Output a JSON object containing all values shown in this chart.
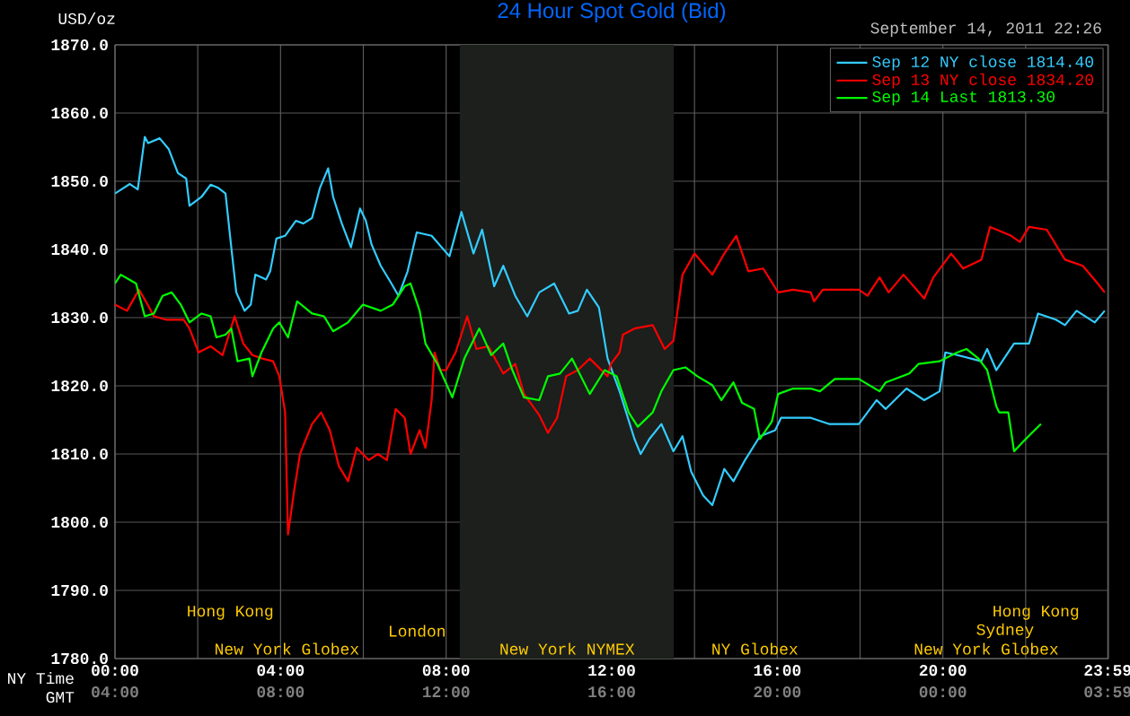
{
  "chart_data": {
    "type": "line",
    "title": "24 Hour Spot Gold (Bid)",
    "ylabel": "USD/oz",
    "xlabel": "NY Time",
    "x2label": "GMT",
    "xlim": [
      0,
      24
    ],
    "xticks": [
      {
        "value": 0,
        "label": "00:00"
      },
      {
        "value": 2,
        "label": null
      },
      {
        "value": 4,
        "label": "04:00"
      },
      {
        "value": 6,
        "label": null
      },
      {
        "value": 8,
        "label": "08:00"
      },
      {
        "value": 10,
        "label": null
      },
      {
        "value": 12,
        "label": "12:00"
      },
      {
        "value": 14,
        "label": null
      },
      {
        "value": 16,
        "label": "16:00"
      },
      {
        "value": 18,
        "label": null
      },
      {
        "value": 20,
        "label": "20:00"
      },
      {
        "value": 22,
        "label": null
      },
      {
        "value": 23.9833,
        "label": "23:59"
      }
    ],
    "x2lim": [
      "2011-09-14T04:00",
      "2011-09-15T04:00"
    ],
    "x2ticks": [
      {
        "value": "2011-09-14T04:00",
        "label": "04:00"
      },
      {
        "value": "2011-09-14T08:00",
        "label": "08:00"
      },
      {
        "value": "2011-09-14T12:00",
        "label": "12:00"
      },
      {
        "value": "2011-09-14T16:00",
        "label": "16:00"
      },
      {
        "value": "2011-09-14T20:00",
        "label": "20:00"
      },
      {
        "value": "2011-09-15T00:00",
        "label": "00:00"
      },
      {
        "value": "2011-09-15T03:59",
        "label": "03:59"
      }
    ],
    "ylim": [
      1780,
      1870
    ],
    "yticks": [
      {
        "value": 1780,
        "label": "1780.0"
      },
      {
        "value": 1790,
        "label": "1790.0"
      },
      {
        "value": 1800,
        "label": "1800.0"
      },
      {
        "value": 1810,
        "label": "1810.0"
      },
      {
        "value": 1820,
        "label": "1820.0"
      },
      {
        "value": 1830,
        "label": "1830.0"
      },
      {
        "value": 1840,
        "label": "1840.0"
      },
      {
        "value": 1850,
        "label": "1850.0"
      },
      {
        "value": 1860,
        "label": "1860.0"
      },
      {
        "value": 1870,
        "label": "1870.0"
      }
    ],
    "grid": true,
    "legend": "top right",
    "bands": [
      {
        "axis": "x",
        "from": 8.33,
        "to": 13.5,
        "color": "#1c1f1c"
      }
    ],
    "annotations": [
      "September 14, 2011 22:26",
      "Hong Kong",
      "Hong Kong",
      "London",
      "Sydney",
      "New York Globex",
      "New York NYMEX",
      "NY Globex",
      "New York Globex"
    ],
    "series": [
      {
        "name": "Sep 12 NY close 1814.40",
        "color": "#33ccff",
        "x": [
          0,
          0.36,
          0.55,
          0.72,
          0.8,
          1.08,
          1.3,
          1.52,
          1.72,
          1.8,
          2.09,
          2.31,
          2.5,
          2.67,
          2.81,
          2.93,
          3.13,
          3.28,
          3.39,
          3.65,
          3.75,
          3.9,
          4.11,
          4.37,
          4.55,
          4.76,
          4.95,
          5.15,
          5.27,
          5.48,
          5.7,
          5.92,
          6.06,
          6.2,
          6.42,
          6.64,
          6.85,
          7.07,
          7.29,
          7.65,
          8.08,
          8.37,
          8.66,
          8.87,
          9.16,
          9.38,
          9.67,
          9.96,
          10.25,
          10.61,
          10.97,
          11.18,
          11.4,
          11.69,
          11.9,
          12.19,
          12.55,
          12.7,
          12.91,
          13.2,
          13.49,
          13.71,
          13.92,
          14.21,
          14.43,
          14.72,
          14.94,
          15.22,
          15.58,
          15.95,
          16.09,
          16.81,
          17.25,
          17.97,
          18.4,
          18.62,
          19.12,
          19.55,
          19.92,
          20.06,
          20.35,
          20.93,
          21.07,
          21.29,
          21.72,
          22.08,
          22.3,
          22.73,
          22.95,
          23.23,
          23.67,
          23.91
        ],
        "values": [
          1848.2,
          1849.6,
          1848.8,
          1856.5,
          1855.6,
          1856.3,
          1854.7,
          1851.2,
          1850.4,
          1846.4,
          1847.7,
          1849.5,
          1849.0,
          1848.2,
          1840.3,
          1833.7,
          1831.0,
          1831.9,
          1836.3,
          1835.6,
          1836.8,
          1841.6,
          1842.0,
          1844.2,
          1843.8,
          1844.6,
          1849.0,
          1851.9,
          1847.7,
          1843.8,
          1840.3,
          1846.0,
          1844.2,
          1840.7,
          1837.6,
          1835.4,
          1833.2,
          1836.8,
          1842.5,
          1842.0,
          1839.0,
          1845.5,
          1839.4,
          1842.9,
          1834.6,
          1837.6,
          1833.2,
          1830.2,
          1833.7,
          1835.0,
          1830.6,
          1831.0,
          1834.1,
          1831.5,
          1824.0,
          1819.2,
          1812.2,
          1810.0,
          1812.2,
          1814.4,
          1810.4,
          1812.6,
          1807.4,
          1803.9,
          1802.5,
          1807.8,
          1806.0,
          1809.1,
          1812.6,
          1813.5,
          1815.3,
          1815.3,
          1814.4,
          1814.4,
          1817.9,
          1816.6,
          1819.6,
          1817.9,
          1819.2,
          1824.9,
          1824.5,
          1823.6,
          1825.4,
          1822.3,
          1826.2,
          1826.2,
          1830.6,
          1829.7,
          1828.9,
          1831.0,
          1829.3,
          1831.0
        ]
      },
      {
        "name": "Sep 13 NY close 1834.20",
        "color": "#ff0000",
        "x": [
          0,
          0.29,
          0.58,
          0.79,
          0.94,
          1.23,
          1.66,
          1.8,
          2.02,
          2.31,
          2.6,
          2.89,
          3.1,
          3.32,
          3.56,
          3.82,
          3.97,
          4.11,
          4.18,
          4.33,
          4.47,
          4.76,
          4.98,
          5.19,
          5.41,
          5.63,
          5.84,
          6.13,
          6.35,
          6.57,
          6.78,
          7.0,
          7.14,
          7.36,
          7.5,
          7.65,
          7.72,
          7.86,
          8.0,
          8.23,
          8.51,
          8.73,
          9.02,
          9.38,
          9.67,
          9.88,
          10.25,
          10.46,
          10.68,
          10.9,
          11.18,
          11.47,
          11.9,
          11.98,
          12.19,
          12.27,
          12.55,
          12.99,
          13.28,
          13.49,
          13.71,
          14.0,
          14.43,
          14.72,
          15.01,
          15.3,
          15.66,
          16.02,
          16.38,
          16.81,
          16.89,
          17.1,
          17.97,
          18.18,
          18.47,
          18.69,
          19.05,
          19.55,
          19.77,
          20.2,
          20.49,
          20.93,
          21.14,
          21.65,
          21.86,
          22.08,
          22.51,
          22.95,
          23.38,
          23.74,
          23.91
        ],
        "values": [
          1831.9,
          1831.0,
          1834.1,
          1831.9,
          1830.2,
          1829.7,
          1829.7,
          1828.4,
          1824.9,
          1825.8,
          1824.5,
          1830.2,
          1826.2,
          1824.5,
          1824.0,
          1823.6,
          1821.4,
          1816.1,
          1798.2,
          1804.7,
          1810.0,
          1814.4,
          1816.1,
          1813.5,
          1808.2,
          1806.0,
          1810.9,
          1809.1,
          1810.0,
          1809.1,
          1816.6,
          1815.3,
          1810.0,
          1813.5,
          1810.9,
          1817.9,
          1824.9,
          1822.3,
          1822.3,
          1824.9,
          1830.2,
          1825.4,
          1825.8,
          1821.8,
          1823.2,
          1818.8,
          1815.7,
          1813.1,
          1815.3,
          1821.4,
          1822.3,
          1824.0,
          1821.4,
          1823.2,
          1824.9,
          1827.5,
          1828.4,
          1828.9,
          1825.4,
          1826.6,
          1836.3,
          1839.4,
          1836.3,
          1839.4,
          1842.0,
          1836.8,
          1837.2,
          1833.7,
          1834.1,
          1833.7,
          1832.4,
          1834.1,
          1834.1,
          1833.2,
          1835.9,
          1833.7,
          1836.3,
          1832.8,
          1835.9,
          1839.4,
          1837.2,
          1838.5,
          1843.3,
          1842.0,
          1841.1,
          1843.3,
          1842.9,
          1838.5,
          1837.6,
          1835.0,
          1833.7
        ]
      },
      {
        "name": "Sep 14 Last 1813.30",
        "color": "#00ff00",
        "x": [
          0,
          0.14,
          0.51,
          0.72,
          0.94,
          1.15,
          1.37,
          1.59,
          1.8,
          2.09,
          2.31,
          2.45,
          2.67,
          2.81,
          2.96,
          3.25,
          3.32,
          3.54,
          3.82,
          3.97,
          4.18,
          4.4,
          4.76,
          5.05,
          5.27,
          5.63,
          5.99,
          6.42,
          6.71,
          7.0,
          7.14,
          7.36,
          7.5,
          7.79,
          8.15,
          8.44,
          8.8,
          9.09,
          9.38,
          9.6,
          9.88,
          10.25,
          10.46,
          10.75,
          11.04,
          11.47,
          11.83,
          12.12,
          12.41,
          12.63,
          12.99,
          13.2,
          13.49,
          13.78,
          14.07,
          14.43,
          14.65,
          14.94,
          15.15,
          15.44,
          15.58,
          15.87,
          16.02,
          16.38,
          16.81,
          17.03,
          17.39,
          17.97,
          18.47,
          18.62,
          19.19,
          19.41,
          19.92,
          20.35,
          20.57,
          20.86,
          21.07,
          21.29,
          21.36,
          21.58,
          21.72,
          21.94,
          22.15,
          22.37
        ],
        "values": [
          1835.0,
          1836.3,
          1835.0,
          1830.2,
          1830.6,
          1833.2,
          1833.7,
          1831.9,
          1829.3,
          1830.6,
          1830.2,
          1827.1,
          1827.5,
          1828.4,
          1823.6,
          1824.0,
          1821.4,
          1824.9,
          1828.4,
          1829.3,
          1827.1,
          1832.4,
          1830.6,
          1830.2,
          1828.0,
          1829.3,
          1831.9,
          1831.0,
          1831.9,
          1834.6,
          1835.0,
          1831.0,
          1826.2,
          1823.2,
          1818.3,
          1824.0,
          1828.4,
          1824.5,
          1826.2,
          1822.3,
          1818.3,
          1817.9,
          1821.4,
          1821.8,
          1824.0,
          1818.8,
          1822.3,
          1821.4,
          1816.1,
          1814.0,
          1816.1,
          1819.2,
          1822.3,
          1822.7,
          1821.4,
          1820.1,
          1817.9,
          1820.5,
          1817.5,
          1816.6,
          1812.2,
          1814.8,
          1818.8,
          1819.6,
          1819.6,
          1819.2,
          1821.0,
          1821.0,
          1819.2,
          1820.5,
          1821.8,
          1823.2,
          1823.6,
          1824.9,
          1825.4,
          1824.0,
          1822.3,
          1817.0,
          1816.1,
          1816.1,
          1810.4,
          1811.8,
          1813.1,
          1814.4
        ]
      }
    ]
  }
}
